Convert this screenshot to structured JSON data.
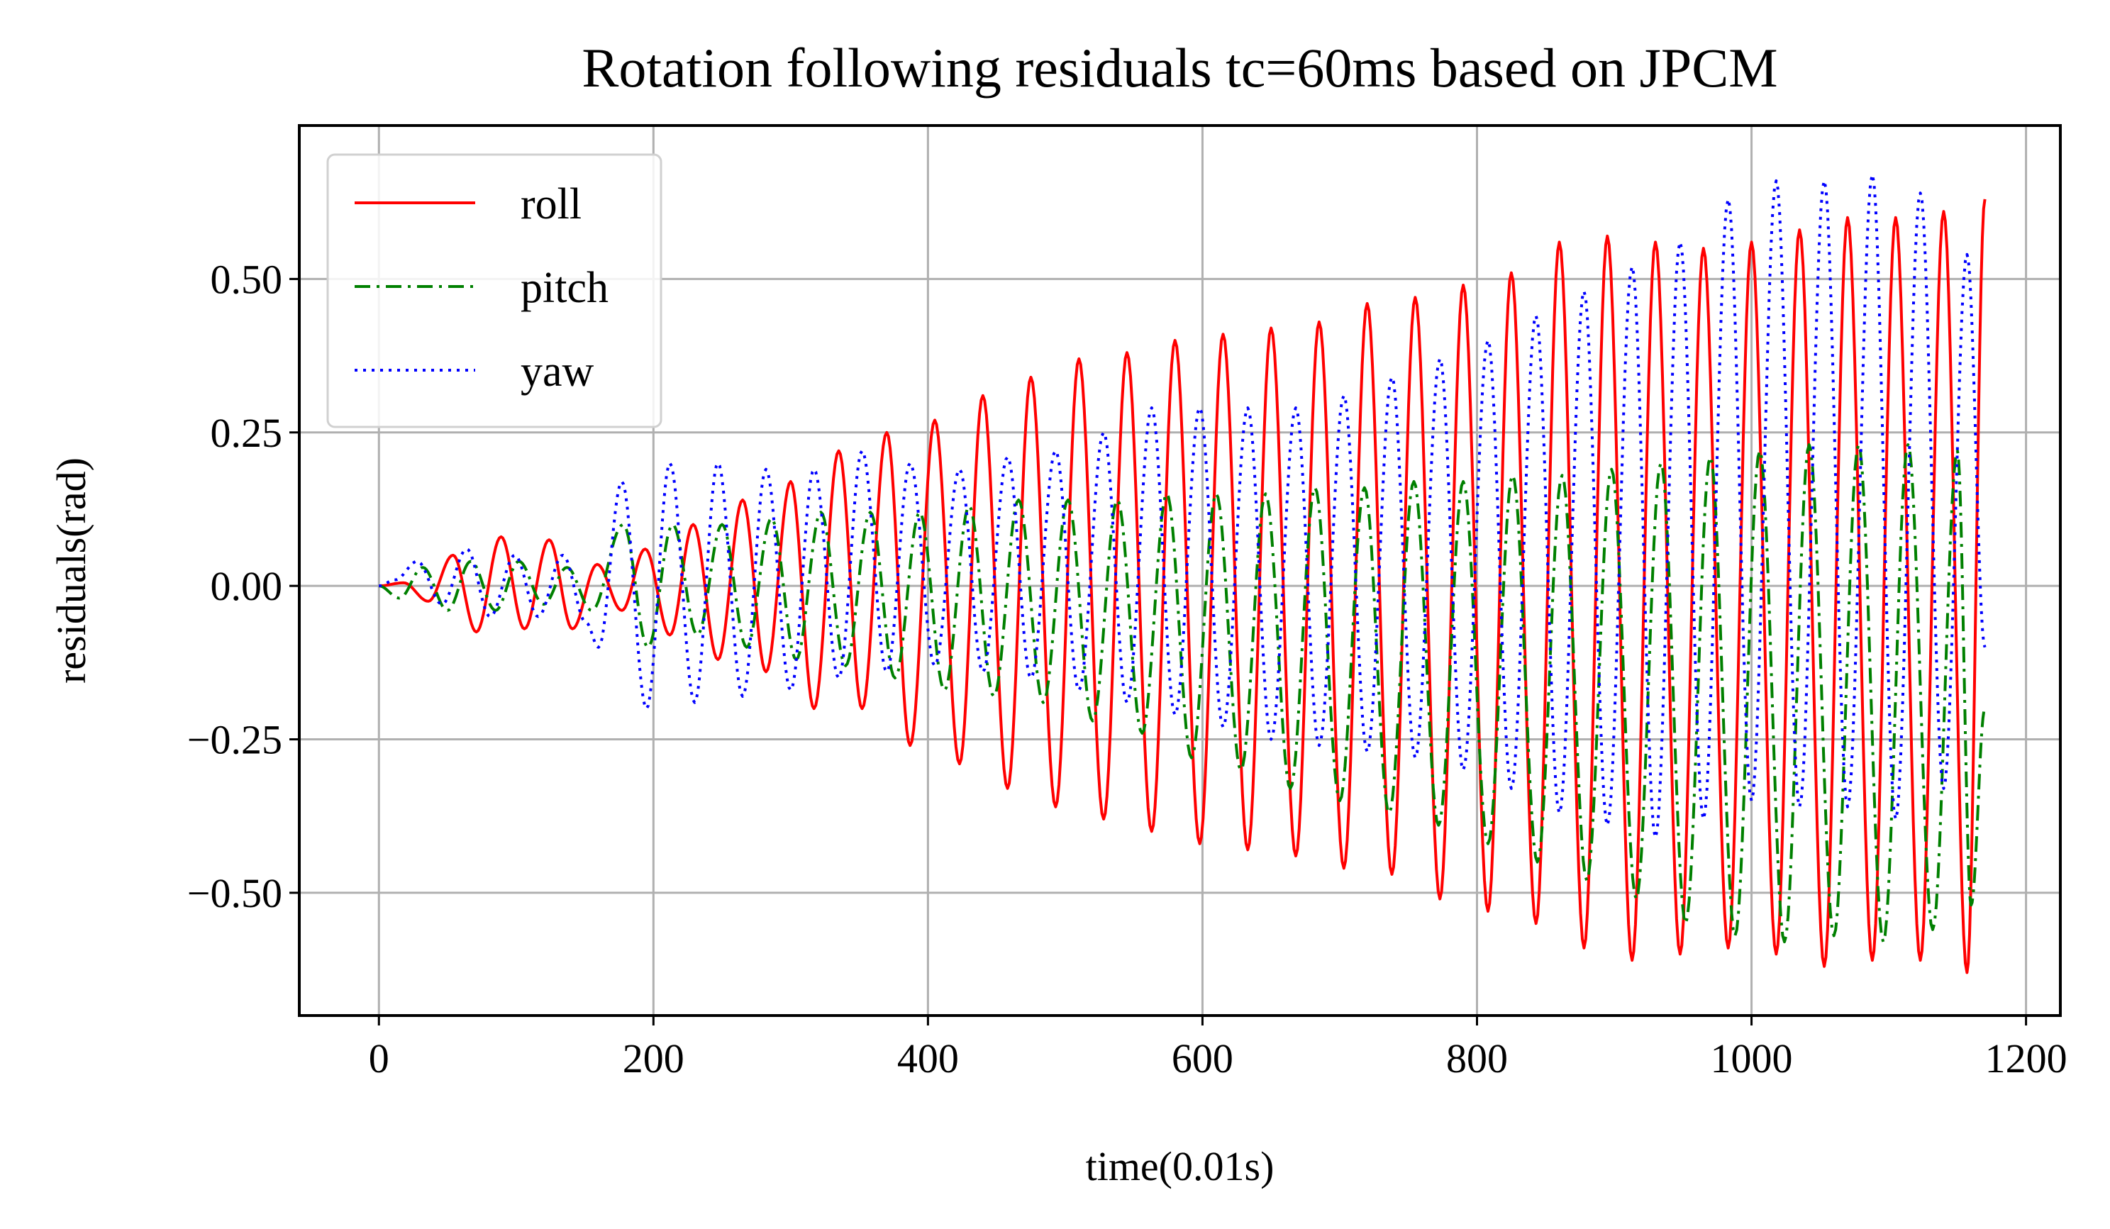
{
  "chart_data": {
    "type": "line",
    "title": "Rotation following residuals tc=60ms based on JPCM",
    "xlabel": "time(0.01s)",
    "ylabel": "residuals(rad)",
    "xlim": [
      -58,
      1225
    ],
    "ylim": [
      -0.7,
      0.75
    ],
    "xticks": [
      0,
      200,
      400,
      600,
      800,
      1000,
      1200
    ],
    "xtick_labels": [
      "0",
      "200",
      "400",
      "600",
      "800",
      "1000",
      "1200"
    ],
    "yticks": [
      -0.5,
      -0.25,
      0.0,
      0.25,
      0.5
    ],
    "ytick_labels": [
      "−0.50",
      "−0.25",
      "0.00",
      "0.25",
      "0.50"
    ],
    "grid": true,
    "legend_position": "top-left",
    "x_range": [
      0,
      1170
    ],
    "series": [
      {
        "name": "roll",
        "color": "#ff0000",
        "style": "solid",
        "peaks": [
          {
            "x": 18,
            "y": 0.005
          },
          {
            "x": 36,
            "y": -0.025
          },
          {
            "x": 54,
            "y": 0.05
          },
          {
            "x": 71,
            "y": -0.075
          },
          {
            "x": 89,
            "y": 0.08
          },
          {
            "x": 106,
            "y": -0.07
          },
          {
            "x": 124,
            "y": 0.075
          },
          {
            "x": 141,
            "y": -0.07
          },
          {
            "x": 159,
            "y": 0.035
          },
          {
            "x": 177,
            "y": -0.04
          },
          {
            "x": 194,
            "y": 0.06
          },
          {
            "x": 212,
            "y": -0.08
          },
          {
            "x": 229,
            "y": 0.1
          },
          {
            "x": 247,
            "y": -0.12
          },
          {
            "x": 265,
            "y": 0.14
          },
          {
            "x": 282,
            "y": -0.14
          },
          {
            "x": 300,
            "y": 0.17
          },
          {
            "x": 317,
            "y": -0.2
          },
          {
            "x": 335,
            "y": 0.22
          },
          {
            "x": 352,
            "y": -0.2
          },
          {
            "x": 370,
            "y": 0.25
          },
          {
            "x": 387,
            "y": -0.26
          },
          {
            "x": 405,
            "y": 0.27
          },
          {
            "x": 423,
            "y": -0.29
          },
          {
            "x": 440,
            "y": 0.31
          },
          {
            "x": 458,
            "y": -0.33
          },
          {
            "x": 475,
            "y": 0.34
          },
          {
            "x": 493,
            "y": -0.36
          },
          {
            "x": 510,
            "y": 0.37
          },
          {
            "x": 528,
            "y": -0.38
          },
          {
            "x": 545,
            "y": 0.38
          },
          {
            "x": 563,
            "y": -0.4
          },
          {
            "x": 580,
            "y": 0.4
          },
          {
            "x": 598,
            "y": -0.42
          },
          {
            "x": 615,
            "y": 0.41
          },
          {
            "x": 633,
            "y": -0.43
          },
          {
            "x": 650,
            "y": 0.42
          },
          {
            "x": 668,
            "y": -0.44
          },
          {
            "x": 685,
            "y": 0.43
          },
          {
            "x": 703,
            "y": -0.46
          },
          {
            "x": 720,
            "y": 0.46
          },
          {
            "x": 738,
            "y": -0.47
          },
          {
            "x": 755,
            "y": 0.47
          },
          {
            "x": 773,
            "y": -0.51
          },
          {
            "x": 790,
            "y": 0.49
          },
          {
            "x": 808,
            "y": -0.53
          },
          {
            "x": 825,
            "y": 0.51
          },
          {
            "x": 843,
            "y": -0.55
          },
          {
            "x": 860,
            "y": 0.56
          },
          {
            "x": 878,
            "y": -0.59
          },
          {
            "x": 895,
            "y": 0.57
          },
          {
            "x": 913,
            "y": -0.61
          },
          {
            "x": 930,
            "y": 0.56
          },
          {
            "x": 948,
            "y": -0.6
          },
          {
            "x": 965,
            "y": 0.55
          },
          {
            "x": 983,
            "y": -0.59
          },
          {
            "x": 1000,
            "y": 0.56
          },
          {
            "x": 1018,
            "y": -0.6
          },
          {
            "x": 1035,
            "y": 0.58
          },
          {
            "x": 1053,
            "y": -0.62
          },
          {
            "x": 1070,
            "y": 0.6
          },
          {
            "x": 1088,
            "y": -0.61
          },
          {
            "x": 1105,
            "y": 0.6
          },
          {
            "x": 1123,
            "y": -0.61
          },
          {
            "x": 1140,
            "y": 0.61
          },
          {
            "x": 1157,
            "y": -0.63
          },
          {
            "x": 1170,
            "y": 0.63
          }
        ]
      },
      {
        "name": "pitch",
        "color": "#008000",
        "style": "dashdot",
        "peaks": [
          {
            "x": 15,
            "y": -0.02
          },
          {
            "x": 32,
            "y": 0.03
          },
          {
            "x": 50,
            "y": -0.04
          },
          {
            "x": 67,
            "y": 0.04
          },
          {
            "x": 85,
            "y": -0.04
          },
          {
            "x": 102,
            "y": 0.04
          },
          {
            "x": 120,
            "y": -0.03
          },
          {
            "x": 137,
            "y": 0.03
          },
          {
            "x": 155,
            "y": -0.04
          },
          {
            "x": 178,
            "y": 0.1
          },
          {
            "x": 196,
            "y": -0.1
          },
          {
            "x": 214,
            "y": 0.1
          },
          {
            "x": 232,
            "y": -0.08
          },
          {
            "x": 250,
            "y": 0.1
          },
          {
            "x": 268,
            "y": -0.1
          },
          {
            "x": 286,
            "y": 0.11
          },
          {
            "x": 304,
            "y": -0.12
          },
          {
            "x": 322,
            "y": 0.12
          },
          {
            "x": 340,
            "y": -0.13
          },
          {
            "x": 358,
            "y": 0.12
          },
          {
            "x": 376,
            "y": -0.15
          },
          {
            "x": 394,
            "y": 0.12
          },
          {
            "x": 412,
            "y": -0.17
          },
          {
            "x": 430,
            "y": 0.13
          },
          {
            "x": 448,
            "y": -0.18
          },
          {
            "x": 466,
            "y": 0.14
          },
          {
            "x": 484,
            "y": -0.19
          },
          {
            "x": 502,
            "y": 0.14
          },
          {
            "x": 520,
            "y": -0.22
          },
          {
            "x": 538,
            "y": 0.14
          },
          {
            "x": 556,
            "y": -0.24
          },
          {
            "x": 574,
            "y": 0.15
          },
          {
            "x": 592,
            "y": -0.28
          },
          {
            "x": 610,
            "y": 0.15
          },
          {
            "x": 628,
            "y": -0.3
          },
          {
            "x": 646,
            "y": 0.15
          },
          {
            "x": 664,
            "y": -0.33
          },
          {
            "x": 682,
            "y": 0.16
          },
          {
            "x": 700,
            "y": -0.35
          },
          {
            "x": 718,
            "y": 0.16
          },
          {
            "x": 736,
            "y": -0.37
          },
          {
            "x": 754,
            "y": 0.17
          },
          {
            "x": 772,
            "y": -0.39
          },
          {
            "x": 790,
            "y": 0.17
          },
          {
            "x": 808,
            "y": -0.42
          },
          {
            "x": 826,
            "y": 0.18
          },
          {
            "x": 844,
            "y": -0.45
          },
          {
            "x": 862,
            "y": 0.18
          },
          {
            "x": 880,
            "y": -0.48
          },
          {
            "x": 898,
            "y": 0.19
          },
          {
            "x": 916,
            "y": -0.51
          },
          {
            "x": 934,
            "y": 0.2
          },
          {
            "x": 952,
            "y": -0.55
          },
          {
            "x": 970,
            "y": 0.21
          },
          {
            "x": 988,
            "y": -0.57
          },
          {
            "x": 1006,
            "y": 0.22
          },
          {
            "x": 1024,
            "y": -0.58
          },
          {
            "x": 1042,
            "y": 0.23
          },
          {
            "x": 1060,
            "y": -0.57
          },
          {
            "x": 1078,
            "y": 0.23
          },
          {
            "x": 1096,
            "y": -0.58
          },
          {
            "x": 1114,
            "y": 0.23
          },
          {
            "x": 1132,
            "y": -0.56
          },
          {
            "x": 1150,
            "y": 0.22
          },
          {
            "x": 1160,
            "y": -0.52
          },
          {
            "x": 1170,
            "y": -0.2
          }
        ]
      },
      {
        "name": "yaw",
        "color": "#0000ff",
        "style": "dotted",
        "peaks": [
          {
            "x": 12,
            "y": 0.01
          },
          {
            "x": 28,
            "y": 0.04
          },
          {
            "x": 46,
            "y": -0.03
          },
          {
            "x": 64,
            "y": 0.06
          },
          {
            "x": 81,
            "y": -0.05
          },
          {
            "x": 99,
            "y": 0.05
          },
          {
            "x": 116,
            "y": -0.05
          },
          {
            "x": 134,
            "y": 0.05
          },
          {
            "x": 151,
            "y": -0.06
          },
          {
            "x": 160,
            "y": -0.1
          },
          {
            "x": 177,
            "y": 0.17
          },
          {
            "x": 195,
            "y": -0.2
          },
          {
            "x": 212,
            "y": 0.2
          },
          {
            "x": 230,
            "y": -0.19
          },
          {
            "x": 247,
            "y": 0.2
          },
          {
            "x": 265,
            "y": -0.18
          },
          {
            "x": 282,
            "y": 0.19
          },
          {
            "x": 300,
            "y": -0.17
          },
          {
            "x": 317,
            "y": 0.19
          },
          {
            "x": 335,
            "y": -0.15
          },
          {
            "x": 352,
            "y": 0.22
          },
          {
            "x": 370,
            "y": -0.14
          },
          {
            "x": 387,
            "y": 0.2
          },
          {
            "x": 405,
            "y": -0.13
          },
          {
            "x": 423,
            "y": 0.19
          },
          {
            "x": 440,
            "y": -0.14
          },
          {
            "x": 458,
            "y": 0.21
          },
          {
            "x": 475,
            "y": -0.15
          },
          {
            "x": 493,
            "y": 0.22
          },
          {
            "x": 510,
            "y": -0.17
          },
          {
            "x": 528,
            "y": 0.25
          },
          {
            "x": 545,
            "y": -0.19
          },
          {
            "x": 563,
            "y": 0.29
          },
          {
            "x": 580,
            "y": -0.21
          },
          {
            "x": 598,
            "y": 0.29
          },
          {
            "x": 615,
            "y": -0.23
          },
          {
            "x": 633,
            "y": 0.29
          },
          {
            "x": 650,
            "y": -0.25
          },
          {
            "x": 668,
            "y": 0.29
          },
          {
            "x": 685,
            "y": -0.26
          },
          {
            "x": 703,
            "y": 0.31
          },
          {
            "x": 720,
            "y": -0.27
          },
          {
            "x": 738,
            "y": 0.34
          },
          {
            "x": 755,
            "y": -0.28
          },
          {
            "x": 773,
            "y": 0.37
          },
          {
            "x": 790,
            "y": -0.3
          },
          {
            "x": 808,
            "y": 0.4
          },
          {
            "x": 825,
            "y": -0.33
          },
          {
            "x": 843,
            "y": 0.44
          },
          {
            "x": 860,
            "y": -0.37
          },
          {
            "x": 878,
            "y": 0.48
          },
          {
            "x": 895,
            "y": -0.39
          },
          {
            "x": 913,
            "y": 0.52
          },
          {
            "x": 930,
            "y": -0.41
          },
          {
            "x": 948,
            "y": 0.56
          },
          {
            "x": 965,
            "y": -0.38
          },
          {
            "x": 983,
            "y": 0.63
          },
          {
            "x": 1000,
            "y": -0.35
          },
          {
            "x": 1018,
            "y": 0.66
          },
          {
            "x": 1035,
            "y": -0.36
          },
          {
            "x": 1053,
            "y": 0.66
          },
          {
            "x": 1070,
            "y": -0.36
          },
          {
            "x": 1088,
            "y": 0.67
          },
          {
            "x": 1105,
            "y": -0.38
          },
          {
            "x": 1123,
            "y": 0.64
          },
          {
            "x": 1140,
            "y": -0.33
          },
          {
            "x": 1157,
            "y": 0.54
          },
          {
            "x": 1170,
            "y": -0.1
          }
        ]
      }
    ]
  }
}
